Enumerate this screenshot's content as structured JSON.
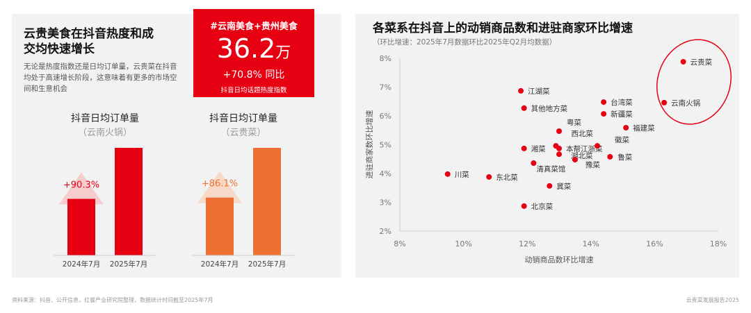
{
  "left": {
    "title_line1": "云贵美食在抖音热度和成",
    "title_line2": "交均快速增长",
    "description": "无论是热度指数还是日均订单量，云贵菜在抖音均处于高速增长阶段，这意味着有更多的市场空间和生意机会",
    "highlight": {
      "tag": "#云南美食+贵州美食",
      "value": "36.2",
      "unit": "万",
      "yoy": "+70.8% 同比",
      "caption": "抖音日均话题热度指数",
      "color": "#e60012"
    }
  },
  "chart_data": [
    {
      "type": "bar",
      "title": "抖音日均订单量",
      "subtitle": "（云南火锅）",
      "categories": [
        "2024年7月",
        "2025年7月"
      ],
      "growth_label": "+90.3%",
      "growth_pct": 90.3,
      "color": "#e60012",
      "arrow_color": "#f7c6c6"
    },
    {
      "type": "bar",
      "title": "抖音日均订单量",
      "subtitle": "（云贵菜）",
      "categories": [
        "2024年7月",
        "2025年7月"
      ],
      "growth_label": "+86.1%",
      "growth_pct": 86.1,
      "color": "#ee7033",
      "arrow_color": "#f9d5bf"
    },
    {
      "type": "scatter",
      "title": "各菜系在抖音上的动销商品数和进驻商家环比增速",
      "subtitle": "（环比增速：2025年7月数据环比2025年Q2月均数据）",
      "xlabel": "动销商品数环比增速",
      "ylabel": "进驻商家数环比增速",
      "xlim": [
        8,
        18
      ],
      "ylim": [
        2,
        8
      ],
      "xticks": [
        "8%",
        "10%",
        "12%",
        "14%",
        "16%",
        "18%"
      ],
      "yticks": [
        "2%",
        "3%",
        "4%",
        "5%",
        "6%",
        "7%",
        "8%"
      ],
      "color": "#e60012",
      "highlighted": [
        "云贵菜",
        "云南火锅"
      ],
      "points": [
        {
          "name": "云贵菜",
          "x": 16.9,
          "y": 7.88
        },
        {
          "name": "云南火锅",
          "x": 16.3,
          "y": 6.46
        },
        {
          "name": "江湖菜",
          "x": 11.8,
          "y": 6.87
        },
        {
          "name": "其他地方菜",
          "x": 11.9,
          "y": 6.27
        },
        {
          "name": "台湾菜",
          "x": 14.4,
          "y": 6.48
        },
        {
          "name": "新疆菜",
          "x": 14.4,
          "y": 6.07
        },
        {
          "name": "福建菜",
          "x": 15.1,
          "y": 5.59
        },
        {
          "name": "粤菜",
          "x": 13.0,
          "y": 5.47
        },
        {
          "name": "西北菜",
          "x": 12.9,
          "y": 4.96
        },
        {
          "name": "本帮江浙菜",
          "x": 13.0,
          "y": 4.87
        },
        {
          "name": "湘菜",
          "x": 11.9,
          "y": 4.87
        },
        {
          "name": "徽菜",
          "x": 14.2,
          "y": 4.96
        },
        {
          "name": "湖北菜",
          "x": 13.0,
          "y": 4.67
        },
        {
          "name": "鲁菜",
          "x": 14.6,
          "y": 4.58
        },
        {
          "name": "豫菜",
          "x": 13.5,
          "y": 4.48
        },
        {
          "name": "清真菜馆",
          "x": 12.2,
          "y": 4.36
        },
        {
          "name": "川菜",
          "x": 9.5,
          "y": 3.98
        },
        {
          "name": "东北菜",
          "x": 10.8,
          "y": 3.88
        },
        {
          "name": "冀菜",
          "x": 12.7,
          "y": 3.57
        },
        {
          "name": "北京菜",
          "x": 11.9,
          "y": 2.87
        }
      ]
    }
  ],
  "footer": {
    "source": "资料来源：抖音、公开信息，红餐产业研究院整理，数据统计时间截至2025年7月",
    "report": "云贵菜发展报告2025"
  }
}
